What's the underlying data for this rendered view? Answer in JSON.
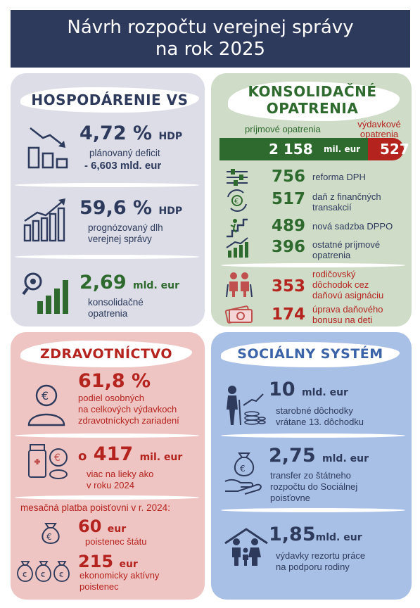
{
  "header": {
    "line1": "Návrh rozpočtu verejnej správy",
    "line2": "na rok 2025"
  },
  "hospodarenie": {
    "title": "HOSPODÁRENIE VS",
    "deficit": {
      "value": "4,72 %",
      "unit": "HDP",
      "label1": "plánovaný deficit",
      "label2": "- 6,603  mld. eur"
    },
    "debt": {
      "value": "59,6 %",
      "unit": "HDP",
      "label1": "prognózovaný dlh",
      "label2": "verejnej správy"
    },
    "consolidation": {
      "value": "2,69",
      "unit": "mld. eur",
      "label1": "konsolidačné",
      "label2": "opatrenia"
    }
  },
  "konsolidacne": {
    "title1": "KONSOLIDAČNÉ",
    "title2": "OPATRENIA",
    "revenue_label": "príjmové opatrenia",
    "expense_label1": "výdavkové",
    "expense_label2": "opatrenia",
    "revenue_total": "2 158",
    "bar_unit": "mil. eur",
    "expense_total": "527",
    "items": [
      {
        "num": "756",
        "line1": "reforma DPH",
        "line2": "",
        "line3": ""
      },
      {
        "num": "517",
        "line1": "daň z finančných",
        "line2": "transakcií",
        "line3": ""
      },
      {
        "num": "489",
        "line1": "nová sadzba DPPO",
        "line2": "",
        "line3": ""
      },
      {
        "num": "396",
        "line1": "ostatné príjmové",
        "line2": "opatrenia",
        "line3": ""
      },
      {
        "num": "353",
        "line1": "rodičovský",
        "line2": "dôchodok cez",
        "line3": "daňovú asignáciu"
      },
      {
        "num": "174",
        "line1": "úprava daňového",
        "line2": "bonusu na deti",
        "line3": ""
      }
    ],
    "colors": {
      "revenue": "#2e6a2e",
      "expense": "#b5231e"
    }
  },
  "zdravotnictvo": {
    "title": "ZDRAVOTNÍCTVO",
    "share": {
      "value": "61,8 %",
      "label1": "podiel osobných",
      "label2": "na celkových výdavkoch",
      "label3": "zdravotníckych zariadení"
    },
    "drugs": {
      "prefix": "o",
      "value": "417",
      "unit": "mil. eur",
      "label1": "viac na lieky ako",
      "label2": "v roku 2024"
    },
    "monthly_label": "mesačná platba poisťovni v r. 2024:",
    "state": {
      "value": "60",
      "unit": "eur",
      "label": "poistenec štátu"
    },
    "active": {
      "value": "215",
      "unit": "eur",
      "label1": "ekonomicky aktívny",
      "label2": "poistenec"
    }
  },
  "socialny": {
    "title": "SOCIÁLNY SYSTÉM",
    "pensions": {
      "value": "10",
      "unit": "mld. eur",
      "label1": "starobné dôchodky",
      "label2": "vrátane 13. dôchodku"
    },
    "transfer": {
      "value": "2,75",
      "unit": "mld. eur",
      "label1": "transfer zo štátneho",
      "label2": "rozpočtu do Sociálnej",
      "label3": "poisťovne"
    },
    "family": {
      "value": "1,85",
      "unit": "mld. eur",
      "label1": "výdavky rezortu práce",
      "label2": "na podporu rodiny"
    }
  }
}
